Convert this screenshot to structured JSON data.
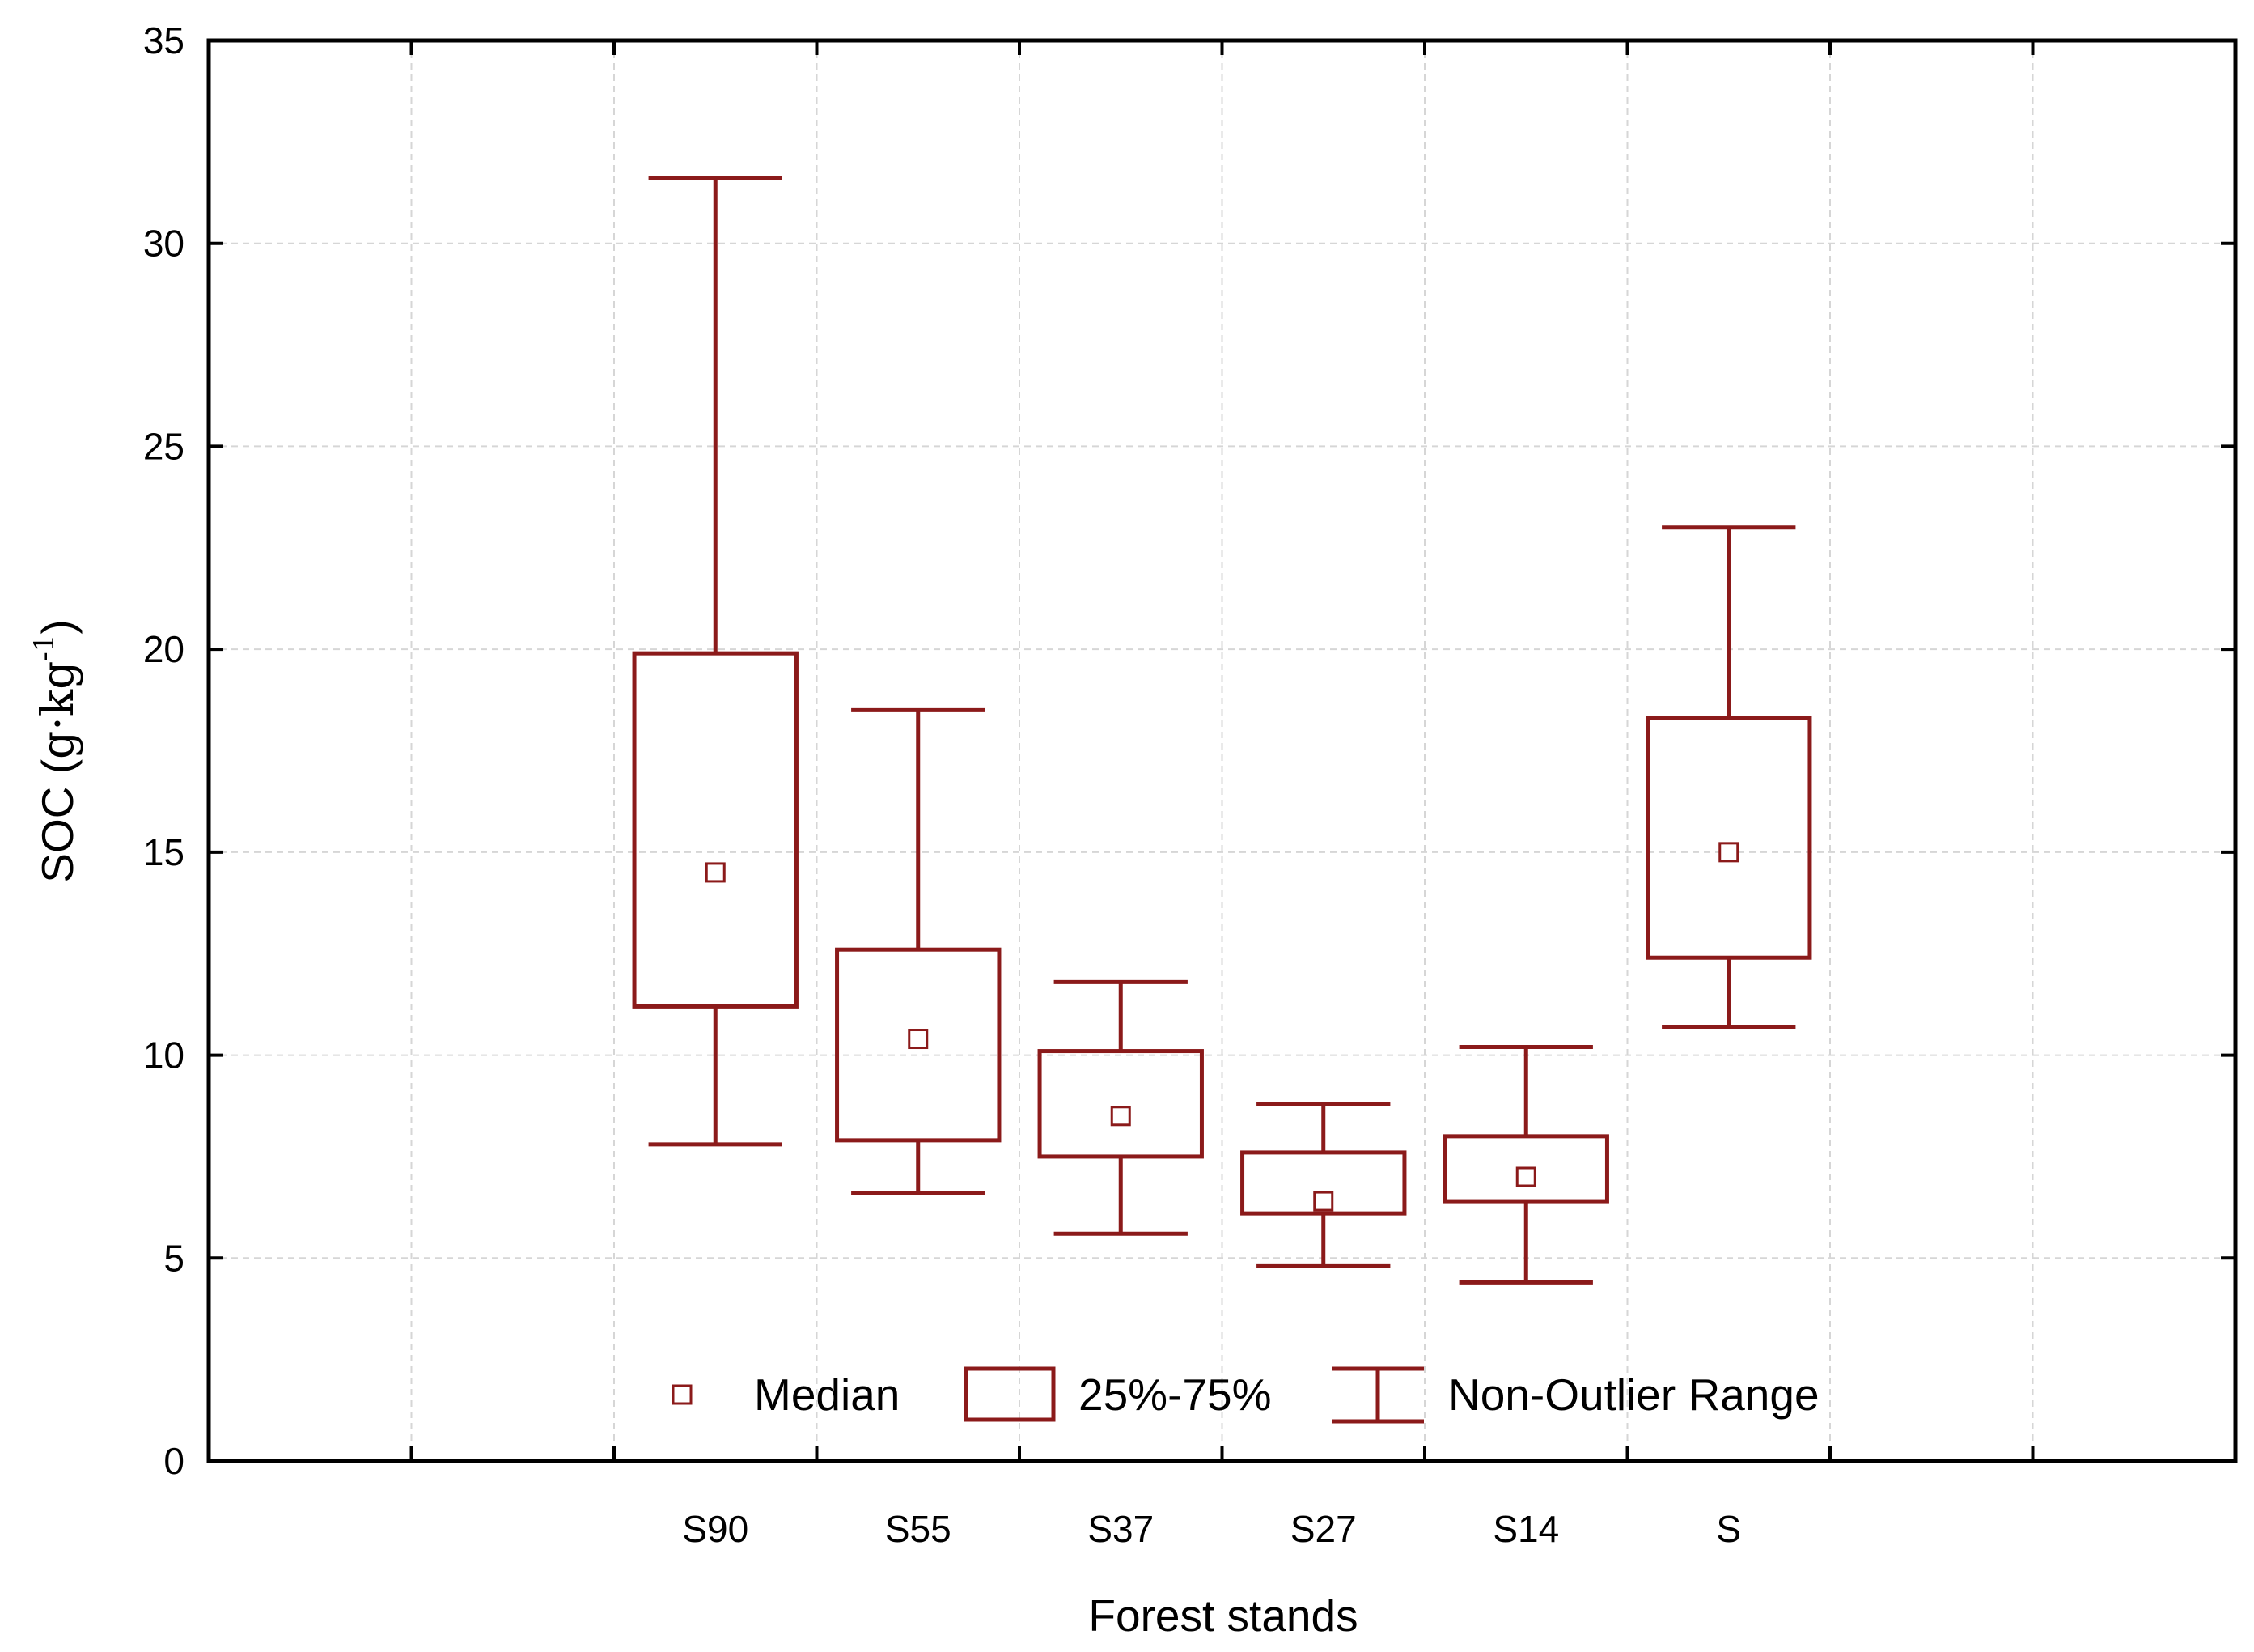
{
  "chart_data": {
    "type": "box",
    "xlabel": "Forest stands",
    "ylabel": {
      "prefix": "SOC (",
      "unit": "g·kg",
      "exponent": "-1",
      "suffix": ")"
    },
    "ylim": [
      0,
      35
    ],
    "yticks": [
      0,
      5,
      10,
      15,
      20,
      25,
      30,
      35
    ],
    "grid": true,
    "categories": [
      "S90",
      "S55",
      "S37",
      "S27",
      "S14",
      "S"
    ],
    "boxes": [
      {
        "category": "S90",
        "min": 7.8,
        "q1": 11.2,
        "median": 14.5,
        "q3": 19.9,
        "max": 31.6
      },
      {
        "category": "S55",
        "min": 6.6,
        "q1": 7.9,
        "median": 10.4,
        "q3": 12.6,
        "max": 18.5
      },
      {
        "category": "S37",
        "min": 5.6,
        "q1": 7.5,
        "median": 8.5,
        "q3": 10.1,
        "max": 11.8
      },
      {
        "category": "S27",
        "min": 4.8,
        "q1": 6.1,
        "median": 6.4,
        "q3": 7.6,
        "max": 8.8
      },
      {
        "category": "S14",
        "min": 4.4,
        "q1": 6.4,
        "median": 7.0,
        "q3": 8.0,
        "max": 10.2
      },
      {
        "category": "S",
        "min": 10.7,
        "q1": 12.4,
        "median": 15.0,
        "q3": 18.3,
        "max": 23.0
      }
    ],
    "legend": {
      "position": "bottom-center",
      "entries": [
        "Median",
        "25%-75%",
        "Non-Outlier Range"
      ]
    },
    "colors": {
      "series": "#8b1a1a",
      "axis": "#000000",
      "grid": "#d6d6d6"
    }
  }
}
